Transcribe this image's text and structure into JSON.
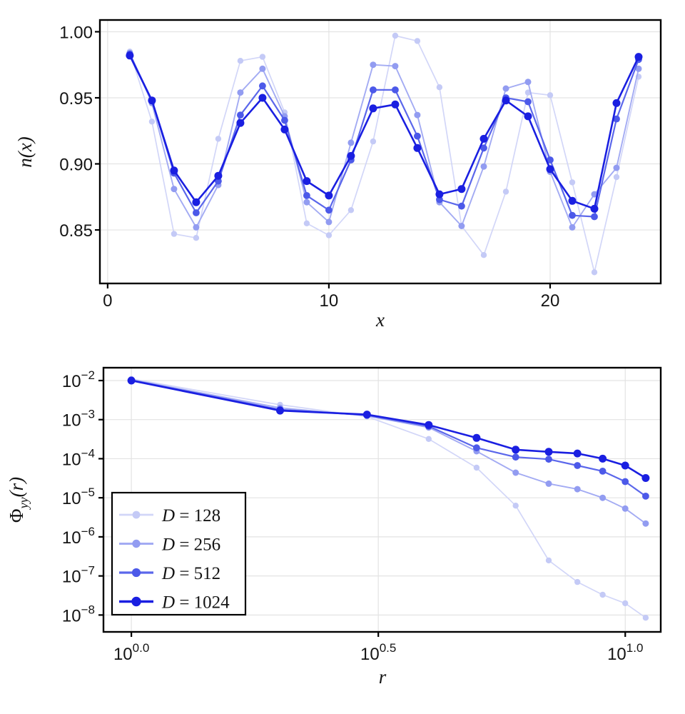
{
  "figure": {
    "background": "#ffffff",
    "accent_blue": "#1a1fe1",
    "grid_color": "#e3e3e3"
  },
  "chart_data": [
    {
      "type": "line",
      "title": "",
      "xlabel": "x",
      "ylabel": "n(x)",
      "xscale": "linear",
      "yscale": "linear",
      "xlim": [
        -0.35,
        25.0
      ],
      "ylim": [
        0.8095,
        1.0089
      ],
      "grid": true,
      "legend": {
        "show": false
      },
      "xticks": [
        {
          "value": 0,
          "label": "0"
        },
        {
          "value": 10,
          "label": "10"
        },
        {
          "value": 20,
          "label": "20"
        }
      ],
      "yticks": [
        {
          "value": 1.0,
          "label": "1.00"
        },
        {
          "value": 0.95,
          "label": "0.95"
        },
        {
          "value": 0.9,
          "label": "0.90"
        },
        {
          "value": 0.85,
          "label": "0.85"
        }
      ],
      "x": [
        1,
        2,
        3,
        4,
        5,
        6,
        7,
        8,
        9,
        10,
        11,
        12,
        13,
        14,
        15,
        16,
        17,
        18,
        19,
        20,
        21,
        22,
        23,
        24
      ],
      "series": [
        {
          "name": "D = 128",
          "color": "#d2d6f8",
          "marker_color": "#c4caf6",
          "line_width": 1.7,
          "marker_size": 4.2,
          "values": [
            0.985,
            0.932,
            0.847,
            0.844,
            0.919,
            0.978,
            0.981,
            0.939,
            0.855,
            0.846,
            0.865,
            0.917,
            0.997,
            0.993,
            0.958,
            0.853,
            0.831,
            0.879,
            0.954,
            0.952,
            0.886,
            0.818,
            0.89,
            0.966
          ]
        },
        {
          "name": "D = 256",
          "color": "#a3abf3",
          "marker_color": "#929cf1",
          "line_width": 1.9,
          "marker_size": 4.5,
          "values": [
            0.984,
            0.946,
            0.881,
            0.852,
            0.884,
            0.954,
            0.972,
            0.936,
            0.871,
            0.856,
            0.916,
            0.975,
            0.974,
            0.937,
            0.871,
            0.853,
            0.898,
            0.957,
            0.962,
            0.894,
            0.852,
            0.877,
            0.897,
            0.972
          ]
        },
        {
          "name": "D = 512",
          "color": "#5b67eb",
          "marker_color": "#4c59e9",
          "line_width": 2.2,
          "marker_size": 4.9,
          "values": [
            0.983,
            0.948,
            0.893,
            0.863,
            0.887,
            0.937,
            0.959,
            0.933,
            0.876,
            0.865,
            0.903,
            0.956,
            0.956,
            0.921,
            0.873,
            0.868,
            0.912,
            0.95,
            0.947,
            0.903,
            0.861,
            0.86,
            0.934,
            0.979
          ]
        },
        {
          "name": "D = 1024",
          "color": "#1a1fe1",
          "marker_color": "#1a1fe1",
          "line_width": 2.6,
          "marker_size": 5.5,
          "values": [
            0.982,
            0.948,
            0.895,
            0.871,
            0.891,
            0.931,
            0.95,
            0.926,
            0.887,
            0.876,
            0.906,
            0.942,
            0.945,
            0.912,
            0.877,
            0.881,
            0.919,
            0.948,
            0.936,
            0.896,
            0.872,
            0.866,
            0.946,
            0.981
          ]
        }
      ]
    },
    {
      "type": "line",
      "title": "",
      "xlabel": "r",
      "ylabel": "Φyy(r)",
      "ylabel_parts": {
        "pre": "Φ",
        "sub": "yy",
        "post": "(r)"
      },
      "xscale": "log",
      "yscale": "log",
      "xlim": [
        0.878,
        11.8
      ],
      "ylim": [
        3.7e-09,
        0.0213
      ],
      "grid": true,
      "legend": {
        "show": true,
        "position": "lower-left"
      },
      "xticks": [
        {
          "value": 1,
          "base": "10",
          "exp": "0.0"
        },
        {
          "value": 3.1623,
          "base": "10",
          "exp": "0.5"
        },
        {
          "value": 10,
          "base": "10",
          "exp": "1.0"
        }
      ],
      "yticks": [
        {
          "value": 0.01,
          "base": "10",
          "exp": "−2"
        },
        {
          "value": 0.001,
          "base": "10",
          "exp": "−3"
        },
        {
          "value": 0.0001,
          "base": "10",
          "exp": "−4"
        },
        {
          "value": 1e-05,
          "base": "10",
          "exp": "−5"
        },
        {
          "value": 1e-06,
          "base": "10",
          "exp": "−6"
        },
        {
          "value": 1e-07,
          "base": "10",
          "exp": "−7"
        },
        {
          "value": 1e-08,
          "base": "10",
          "exp": "−8"
        }
      ],
      "x": [
        1,
        2,
        3,
        4,
        5,
        6,
        7,
        8,
        9,
        10,
        11
      ],
      "series": [
        {
          "name": "D = 128",
          "color": "#d2d6f8",
          "marker_color": "#c4caf6",
          "line_width": 1.7,
          "marker_size": 4.2,
          "values": [
            0.011,
            0.0024,
            0.0012,
            0.00032,
            5.9e-05,
            6.3e-06,
            2.5e-07,
            7e-08,
            3.3e-08,
            2e-08,
            8.5e-09
          ]
        },
        {
          "name": "D = 256",
          "color": "#a3abf3",
          "marker_color": "#929cf1",
          "line_width": 1.9,
          "marker_size": 4.5,
          "values": [
            0.0105,
            0.002,
            0.00125,
            0.00063,
            0.000155,
            4.4e-05,
            2.3e-05,
            1.66e-05,
            1e-05,
            5.3e-06,
            2.2e-06
          ]
        },
        {
          "name": "D = 512",
          "color": "#5b67eb",
          "marker_color": "#4c59e9",
          "line_width": 2.2,
          "marker_size": 4.9,
          "values": [
            0.0102,
            0.0018,
            0.0013,
            0.00068,
            0.00019,
            0.00011,
            9.7e-05,
            6.7e-05,
            4.8e-05,
            2.6e-05,
            1.1e-05
          ]
        },
        {
          "name": "D = 1024",
          "color": "#1a1fe1",
          "marker_color": "#1a1fe1",
          "line_width": 2.6,
          "marker_size": 5.5,
          "values": [
            0.01,
            0.0017,
            0.00135,
            0.00073,
            0.00034,
            0.00017,
            0.00015,
            0.000136,
            0.0001,
            6.7e-05,
            3.2e-05
          ]
        }
      ]
    }
  ]
}
